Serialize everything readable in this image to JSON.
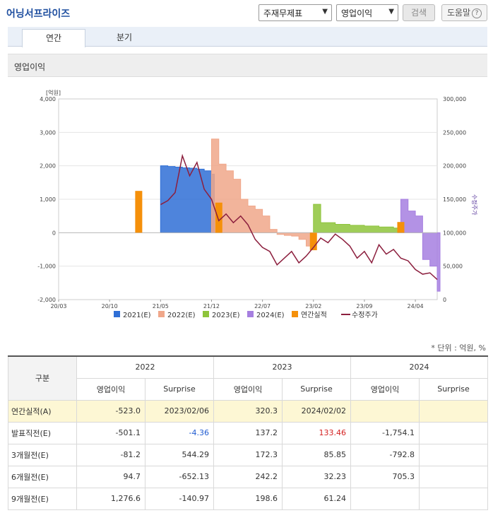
{
  "header": {
    "company": "어닝서프라이즈",
    "select_main": "주재무제표",
    "select_item": "영업이익",
    "search_label": "검색",
    "help_label": "도움말",
    "help_icon_glyph": "?"
  },
  "tabs": [
    {
      "label": "연간",
      "active": true
    },
    {
      "label": "분기",
      "active": false
    }
  ],
  "section_title": "영업이익",
  "chart_data": {
    "type": "area",
    "left_axis": {
      "unit_label": "[억원]",
      "min": -2000,
      "max": 4000,
      "ticks": [
        "4,000",
        "3,000",
        "2,000",
        "1,000",
        "0",
        "-1,000",
        "-2,000"
      ]
    },
    "right_axis": {
      "label": "수정주가",
      "min": 0,
      "max": 300000,
      "ticks": [
        "300,000",
        "250,000",
        "200,000",
        "150,000",
        "100,000",
        "50,000",
        "0"
      ]
    },
    "x_ticks": [
      "20/03",
      "20/10",
      "21/05",
      "21/12",
      "22/07",
      "23/02",
      "23/09",
      "24/04"
    ],
    "x_range": [
      "2020-03",
      "2024-07"
    ],
    "legend": [
      "2021(E)",
      "2022(E)",
      "2023(E)",
      "2024(E)",
      "연간실적",
      "수정주가"
    ],
    "colors": {
      "e2021": "#2f6fd6",
      "e2022": "#f0a78a",
      "e2023": "#8ec43b",
      "e2024": "#a67fe0",
      "actual": "#f5900a",
      "price": "#8c1f3e"
    },
    "estimate_series": [
      {
        "name": "2021(E)",
        "points": [
          [
            "2021-05",
            2000
          ],
          [
            "2021-06",
            1980
          ],
          [
            "2021-07",
            1960
          ],
          [
            "2021-08",
            1940
          ],
          [
            "2021-09",
            1930
          ],
          [
            "2021-10",
            1900
          ],
          [
            "2021-11",
            1850
          ],
          [
            "2021-12",
            1750
          ]
        ]
      },
      {
        "name": "2022(E)",
        "points": [
          [
            "2021-12",
            2800
          ],
          [
            "2022-01",
            2050
          ],
          [
            "2022-02",
            1850
          ],
          [
            "2022-03",
            1600
          ],
          [
            "2022-04",
            1000
          ],
          [
            "2022-05",
            800
          ],
          [
            "2022-06",
            700
          ],
          [
            "2022-07",
            500
          ],
          [
            "2022-08",
            100
          ],
          [
            "2022-09",
            -50
          ],
          [
            "2022-10",
            -80
          ],
          [
            "2022-11",
            -100
          ],
          [
            "2022-12",
            -200
          ],
          [
            "2023-01",
            -400
          ],
          [
            "2023-02",
            -500
          ]
        ]
      },
      {
        "name": "2023(E)",
        "points": [
          [
            "2023-02",
            850
          ],
          [
            "2023-03",
            300
          ],
          [
            "2023-05",
            250
          ],
          [
            "2023-07",
            220
          ],
          [
            "2023-09",
            200
          ],
          [
            "2023-11",
            170
          ],
          [
            "2024-01",
            140
          ],
          [
            "2024-02",
            140
          ]
        ]
      },
      {
        "name": "2024(E)",
        "points": [
          [
            "2024-02",
            1000
          ],
          [
            "2024-03",
            650
          ],
          [
            "2024-04",
            500
          ],
          [
            "2024-05",
            -800
          ],
          [
            "2024-06",
            -1000
          ],
          [
            "2024-07",
            -1750
          ]
        ]
      }
    ],
    "actual_bars": [
      {
        "date": "2021-02",
        "value": 1250
      },
      {
        "date": "2022-01",
        "value": 900
      },
      {
        "date": "2023-02",
        "value": -523
      },
      {
        "date": "2024-02",
        "value": 320
      }
    ],
    "price_series": [
      [
        "2021-05",
        142000
      ],
      [
        "2021-06",
        148000
      ],
      [
        "2021-07",
        160000
      ],
      [
        "2021-08",
        215000
      ],
      [
        "2021-09",
        185000
      ],
      [
        "2021-10",
        205000
      ],
      [
        "2021-11",
        165000
      ],
      [
        "2021-12",
        150000
      ],
      [
        "2022-01",
        118000
      ],
      [
        "2022-02",
        128000
      ],
      [
        "2022-03",
        115000
      ],
      [
        "2022-04",
        125000
      ],
      [
        "2022-05",
        112000
      ],
      [
        "2022-06",
        90000
      ],
      [
        "2022-07",
        78000
      ],
      [
        "2022-08",
        72000
      ],
      [
        "2022-09",
        52000
      ],
      [
        "2022-10",
        62000
      ],
      [
        "2022-11",
        72000
      ],
      [
        "2022-12",
        55000
      ],
      [
        "2023-01",
        65000
      ],
      [
        "2023-02",
        78000
      ],
      [
        "2023-03",
        92000
      ],
      [
        "2023-04",
        85000
      ],
      [
        "2023-05",
        98000
      ],
      [
        "2023-06",
        90000
      ],
      [
        "2023-07",
        80000
      ],
      [
        "2023-08",
        62000
      ],
      [
        "2023-09",
        72000
      ],
      [
        "2023-10",
        55000
      ],
      [
        "2023-11",
        82000
      ],
      [
        "2023-12",
        68000
      ],
      [
        "2024-01",
        75000
      ],
      [
        "2024-02",
        62000
      ],
      [
        "2024-03",
        58000
      ],
      [
        "2024-04",
        45000
      ],
      [
        "2024-05",
        38000
      ],
      [
        "2024-06",
        40000
      ],
      [
        "2024-07",
        30000
      ]
    ]
  },
  "unit_note": "* 단위 : 억원, %",
  "table": {
    "row_header": "구분",
    "years": [
      "2022",
      "2023",
      "2024"
    ],
    "subheaders": [
      "영업이익",
      "Surprise",
      "영업이익",
      "Surprise",
      "영업이익",
      "Surprise"
    ],
    "rows": [
      {
        "label": "연간실적(A)",
        "cells": [
          "-523.0",
          "2023/02/06",
          "320.3",
          "2024/02/02",
          "",
          ""
        ],
        "highlight": true
      },
      {
        "label": "발표직전(E)",
        "cells": [
          "-501.1",
          "-4.36",
          "137.2",
          "133.46",
          "-1,754.1",
          ""
        ]
      },
      {
        "label": "3개월전(E)",
        "cells": [
          "-81.2",
          "544.29",
          "172.3",
          "85.85",
          "-792.8",
          ""
        ]
      },
      {
        "label": "6개월전(E)",
        "cells": [
          "94.7",
          "-652.13",
          "242.2",
          "32.23",
          "705.3",
          ""
        ]
      },
      {
        "label": "9개월전(E)",
        "cells": [
          "1,276.6",
          "-140.97",
          "198.6",
          "61.24",
          "",
          ""
        ]
      }
    ]
  }
}
